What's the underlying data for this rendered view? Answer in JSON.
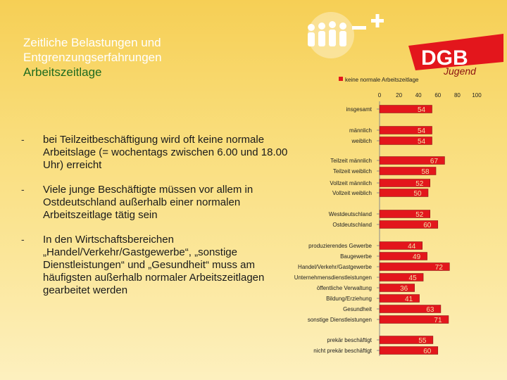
{
  "slide": {
    "title_lines": [
      "Zeitliche Belastungen und",
      "Entgrenzungserfahrungen"
    ],
    "subtitle": "Arbeitszeitlage",
    "logo_text": "DGB",
    "logo_script": "Jugend",
    "bullets": [
      {
        "dash": "-",
        "text": "bei Teilzeitbeschäftigung wird oft keine normale Arbeitslage (= wochentags zwischen 6.00 und 18.00 Uhr) erreicht"
      },
      {
        "dash": "-",
        "text": "Viele junge Beschäftigte müssen vor allem in Ostdeutschland außerhalb einer normalen Arbeitszeitlage tätig sein"
      },
      {
        "dash": "-",
        "text": "In den Wirtschaftsbereichen „Handel/Verkehr/Gastgewerbe“, „sonstige Dienstleistungen“ und „Gesundheit“ muss am häufigsten außerhalb normaler Arbeitszeitlagen gearbeitet werden"
      }
    ]
  },
  "colors": {
    "bar": "#e3161c",
    "bar_label": "#f0e2a8",
    "title": "#ffffff",
    "subtitle": "#1f6b1f",
    "background": "#f8d968"
  },
  "chart_data": {
    "type": "bar",
    "orientation": "horizontal",
    "legend": "keine normale Arbeitszeitlage",
    "xlim": [
      0,
      100
    ],
    "xticks": [
      "0",
      "20",
      "40",
      "60",
      "80",
      "100"
    ],
    "categories": [
      "insgesamt",
      "männlich",
      "weiblich",
      "Teilzeit männlich",
      "Teilzeit weiblich",
      "Vollzeit männlich",
      "Vollzeit weiblich",
      "Westdeutschland",
      "Ostdeutschland",
      "produzierendes Gewerbe",
      "Baugewerbe",
      "Handel/Verkehr/Gastgewerbe",
      "Unternehmensdienstleistungen",
      "öffentliche Verwaltung",
      "Bildung/Erziehung",
      "Gesundheit",
      "sonstige Dienstleistungen",
      "prekär beschäftigt",
      "nicht prekär beschäftigt"
    ],
    "values": [
      54,
      54,
      54,
      67,
      58,
      52,
      50,
      52,
      60,
      44,
      49,
      72,
      45,
      36,
      41,
      63,
      71,
      55,
      60
    ]
  }
}
